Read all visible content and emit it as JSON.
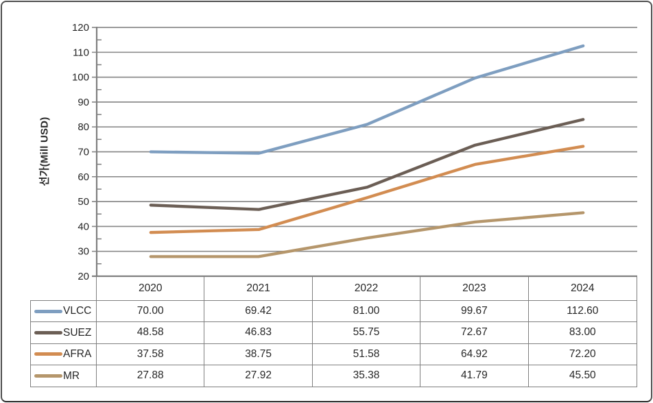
{
  "chart_data": {
    "type": "line",
    "title": "",
    "xlabel": "",
    "ylabel": "선가(Mill USD)",
    "categories": [
      "2020",
      "2021",
      "2022",
      "2023",
      "2024"
    ],
    "ylim": [
      20,
      120
    ],
    "ytick_step": 10,
    "yticks": [
      120,
      110,
      100,
      90,
      80,
      70,
      60,
      50,
      40,
      30,
      20
    ],
    "minor_tick_step": 5,
    "grid": true,
    "legend_position": "table-left",
    "series": [
      {
        "name": "VLCC",
        "color": "#7e9ec0",
        "values": [
          70.0,
          69.42,
          81.0,
          99.67,
          112.6
        ]
      },
      {
        "name": "SUEZ",
        "color": "#6b5e55",
        "values": [
          48.58,
          46.83,
          55.75,
          72.67,
          83.0
        ]
      },
      {
        "name": "AFRA",
        "color": "#d28c51",
        "values": [
          37.58,
          38.75,
          51.58,
          64.92,
          72.2
        ]
      },
      {
        "name": "MR",
        "color": "#b5966b",
        "values": [
          27.88,
          27.92,
          35.38,
          41.79,
          45.5
        ]
      }
    ]
  },
  "table": {
    "header": [
      "2020",
      "2021",
      "2022",
      "2023",
      "2024"
    ],
    "rows": [
      {
        "label": "VLCC",
        "values": [
          "70.00",
          "69.42",
          "81.00",
          "99.67",
          "112.60"
        ]
      },
      {
        "label": "SUEZ",
        "values": [
          "48.58",
          "46.83",
          "55.75",
          "72.67",
          "83.00"
        ]
      },
      {
        "label": "AFRA",
        "values": [
          "37.58",
          "38.75",
          "51.58",
          "64.92",
          "72.20"
        ]
      },
      {
        "label": "MR",
        "values": [
          "27.88",
          "27.92",
          "35.38",
          "41.79",
          "45.50"
        ]
      }
    ]
  },
  "colors": {
    "gridline": "#8c8c8c",
    "axis": "#7f7f7f",
    "table_border": "#7f7f7f",
    "text": "#262626",
    "frame_border": "#4f4f4f",
    "background": "#ffffff"
  }
}
